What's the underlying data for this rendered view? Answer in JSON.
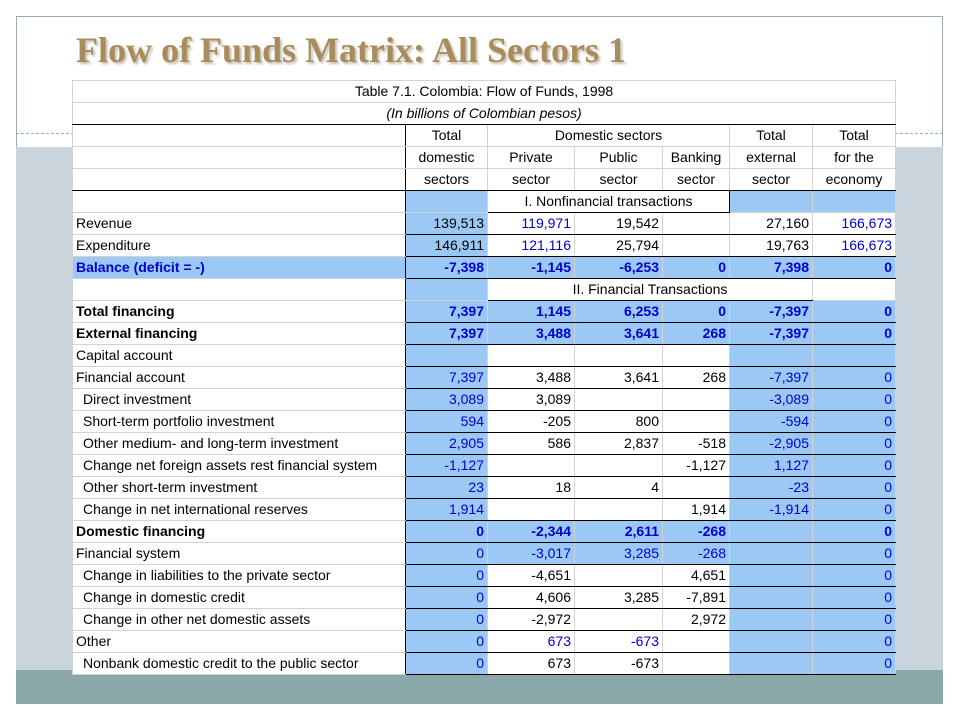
{
  "slide": {
    "title": "Flow of Funds Matrix: All Sectors 1",
    "colors": {
      "title": "#a88c5c",
      "highlight": "#9bc8f4",
      "link": "#0000cc",
      "frame": "#9aaab6",
      "footer_bar": "#8aa8aa"
    }
  },
  "table": {
    "caption": "Table  7.1.  Colombia: Flow of Funds, 1998",
    "subcaption": "(In billions of Colombian pesos)",
    "header": {
      "domestic_group": "Domestic sectors",
      "col1": [
        "Total",
        "domestic",
        "sectors"
      ],
      "col2": [
        "Private",
        "sector"
      ],
      "col3": [
        "Public",
        "sector"
      ],
      "col4": [
        "Banking",
        "sector"
      ],
      "col5": [
        "Total",
        "external",
        "sector"
      ],
      "col6": [
        "Total",
        "for the",
        "economy"
      ]
    },
    "section1": "I. Nonfinancial transactions",
    "rows1": [
      {
        "label": "Revenue",
        "v": [
          "139,513",
          "119,971",
          "19,542",
          "",
          "27,160",
          "166,673"
        ],
        "indent": false,
        "bold": false,
        "hl": false
      },
      {
        "label": "Expenditure",
        "v": [
          "146,911",
          "121,116",
          "25,794",
          "",
          "19,763",
          "166,673"
        ],
        "indent": false,
        "bold": false,
        "hl": false
      },
      {
        "label": "Balance (deficit = -)",
        "v": [
          "-7,398",
          "-1,145",
          "-6,253",
          "0",
          "7,398",
          "0"
        ],
        "indent": false,
        "bold": true,
        "hl": true
      }
    ],
    "section2": "II. Financial Transactions",
    "rows2": [
      {
        "label": "Total financing",
        "v": [
          "7,397",
          "1,145",
          "6,253",
          "0",
          "-7,397",
          "0"
        ],
        "indent": false,
        "bold": true
      },
      {
        "label": "External financing",
        "v": [
          "7,397",
          "3,488",
          "3,641",
          "268",
          "-7,397",
          "0"
        ],
        "indent": false,
        "bold": true
      },
      {
        "label": "Capital account",
        "v": [
          "",
          "",
          "",
          "",
          "",
          ""
        ],
        "indent": false,
        "bold": false
      },
      {
        "label": "Financial account",
        "v": [
          "7,397",
          "3,488",
          "3,641",
          "268",
          "-7,397",
          "0"
        ],
        "indent": false,
        "bold": false
      },
      {
        "label": "Direct investment",
        "v": [
          "3,089",
          "3,089",
          "",
          "",
          "-3,089",
          "0"
        ],
        "indent": true,
        "bold": false
      },
      {
        "label": "Short-term portfolio investment",
        "v": [
          "594",
          "-205",
          "800",
          "",
          "-594",
          "0"
        ],
        "indent": true,
        "bold": false
      },
      {
        "label": "Other medium- and long-term investment",
        "v": [
          "2,905",
          "586",
          "2,837",
          "-518",
          "-2,905",
          "0"
        ],
        "indent": true,
        "bold": false
      },
      {
        "label": "Change net foreign assets rest financial system",
        "v": [
          "-1,127",
          "",
          "",
          "-1,127",
          "1,127",
          "0"
        ],
        "indent": true,
        "bold": false
      },
      {
        "label": "Other short-term investment",
        "v": [
          "23",
          "18",
          "4",
          "",
          "-23",
          "0"
        ],
        "indent": true,
        "bold": false
      },
      {
        "label": "Change in net international reserves",
        "v": [
          "1,914",
          "",
          "",
          "1,914",
          "-1,914",
          "0"
        ],
        "indent": true,
        "bold": false
      },
      {
        "label": "Domestic financing",
        "v": [
          "0",
          "-2,344",
          "2,611",
          "-268",
          "",
          "0"
        ],
        "indent": false,
        "bold": true
      },
      {
        "label": "Financial system",
        "v": [
          "0",
          "-3,017",
          "3,285",
          "-268",
          "",
          "0"
        ],
        "indent": false,
        "bold": false
      },
      {
        "label": "Change in liabilities to the private sector",
        "v": [
          "0",
          "-4,651",
          "",
          "4,651",
          "",
          "0"
        ],
        "indent": true,
        "bold": false
      },
      {
        "label": "Change in domestic credit",
        "v": [
          "0",
          "4,606",
          "3,285",
          "-7,891",
          "",
          "0"
        ],
        "indent": true,
        "bold": false
      },
      {
        "label": "Change in other net domestic assets",
        "v": [
          "0",
          "-2,972",
          "",
          "2,972",
          "",
          "0"
        ],
        "indent": true,
        "bold": false
      },
      {
        "label": "Other",
        "v": [
          "0",
          "673",
          "-673",
          "",
          "",
          "0"
        ],
        "indent": false,
        "bold": false
      },
      {
        "label": "Nonbank domestic credit to the public sector",
        "v": [
          "0",
          "673",
          "-673",
          "",
          "",
          "0"
        ],
        "indent": true,
        "bold": false
      }
    ]
  }
}
